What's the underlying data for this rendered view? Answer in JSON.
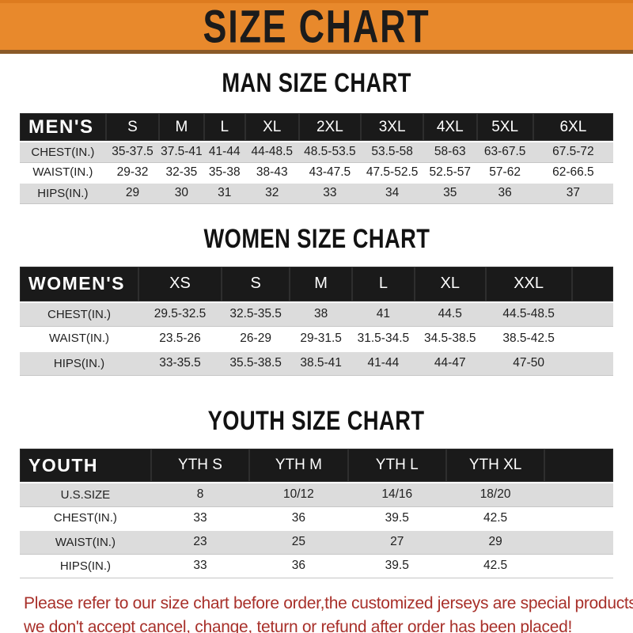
{
  "banner": {
    "title": "SIZE CHART"
  },
  "colors": {
    "banner_orange": "#E8892C",
    "banner_edge_dark": "#8A5A28",
    "bar_black": "#1A1A1A",
    "row_gray": "#DCDCDC",
    "disclaimer_red": "#A8302A"
  },
  "sections": [
    {
      "heading": "MAN SIZE CHART",
      "table": {
        "header_label": "MEN'S",
        "columns": [
          "S",
          "M",
          "L",
          "XL",
          "2XL",
          "3XL",
          "4XL",
          "5XL",
          "6XL"
        ],
        "rows": [
          {
            "label": "CHEST(IN.)",
            "values": [
              "35-37.5",
              "37.5-41",
              "41-44",
              "44-48.5",
              "48.5-53.5",
              "53.5-58",
              "58-63",
              "63-67.5",
              "67.5-72"
            ]
          },
          {
            "label": "WAIST(IN.)",
            "values": [
              "29-32",
              "32-35",
              "35-38",
              "38-43",
              "43-47.5",
              "47.5-52.5",
              "52.5-57",
              "57-62",
              "62-66.5"
            ]
          },
          {
            "label": "HIPS(IN.)",
            "values": [
              "29",
              "30",
              "31",
              "32",
              "33",
              "34",
              "35",
              "36",
              "37"
            ]
          }
        ]
      }
    },
    {
      "heading": "WOMEN SIZE CHART",
      "table": {
        "header_label": "WOMEN'S",
        "columns": [
          "XS",
          "S",
          "M",
          "L",
          "XL",
          "XXL"
        ],
        "rows": [
          {
            "label": "CHEST(IN.)",
            "values": [
              "29.5-32.5",
              "32.5-35.5",
              "38",
              "41",
              "44.5",
              "44.5-48.5"
            ]
          },
          {
            "label": "WAIST(IN.)",
            "values": [
              "23.5-26",
              "26-29",
              "29-31.5",
              "31.5-34.5",
              "34.5-38.5",
              "38.5-42.5"
            ]
          },
          {
            "label": "HIPS(IN.)",
            "values": [
              "33-35.5",
              "35.5-38.5",
              "38.5-41",
              "41-44",
              "44-47",
              "47-50"
            ]
          }
        ]
      }
    },
    {
      "heading": "YOUTH SIZE CHART",
      "table": {
        "header_label": "YOUTH",
        "columns": [
          "YTH S",
          "YTH M",
          "YTH L",
          "YTH XL"
        ],
        "rows": [
          {
            "label": "U.S.SIZE",
            "values": [
              "8",
              "10/12",
              "14/16",
              "18/20"
            ]
          },
          {
            "label": "CHEST(IN.)",
            "values": [
              "33",
              "36",
              "39.5",
              "42.5"
            ]
          },
          {
            "label": "WAIST(IN.)",
            "values": [
              "23",
              "25",
              "27",
              "29"
            ]
          },
          {
            "label": "HIPS(IN.)",
            "values": [
              "33",
              "36",
              "39.5",
              "42.5"
            ]
          }
        ]
      }
    }
  ],
  "disclaimer": {
    "line1": "Please refer to our size chart before order,the customized jerseys are special products,",
    "line2": "we don't accept cancel, change, teturn or refund after order has been placed!"
  }
}
